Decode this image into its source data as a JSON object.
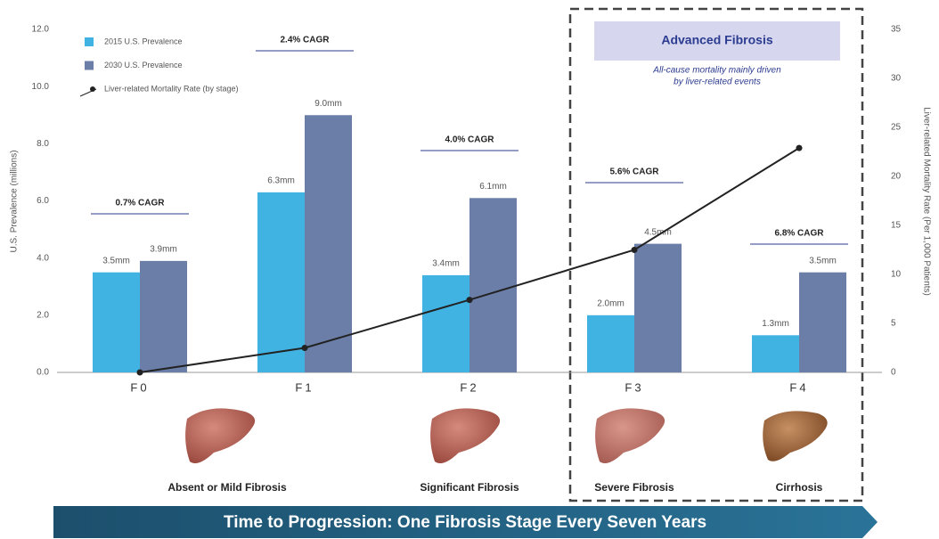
{
  "chart_data": {
    "type": "bar",
    "categories": [
      "F0",
      "F1",
      "F2",
      "F3",
      "F4"
    ],
    "ylabel": "U.S. Prevalence (millions)",
    "y2label": "Liver-related Mortality Rate (Per 1,000 Patients)",
    "ylim": [
      0,
      12
    ],
    "yticks": [
      {
        "value": 0,
        "label": "0.0"
      },
      {
        "value": 2,
        "label": "2.0"
      },
      {
        "value": 4,
        "label": "4.0"
      },
      {
        "value": 6,
        "label": "6.0"
      },
      {
        "value": 8,
        "label": "8.0"
      },
      {
        "value": 10,
        "label": "10.0"
      },
      {
        "value": 12,
        "label": "12.0"
      }
    ],
    "y2lim": [
      0,
      35
    ],
    "y2ticks": [
      0,
      5,
      10,
      15,
      20,
      25,
      30,
      35
    ],
    "grid": false,
    "legend": "top-left",
    "series": [
      {
        "name": "2015 U.S. Prevalence",
        "color": "#41b3e3",
        "values": [
          3.5,
          6.3,
          3.4,
          2.0,
          1.3
        ],
        "value_labels": [
          "3.5mm",
          "6.3mm",
          "3.4mm",
          "2.0mm",
          "1.3mm"
        ]
      },
      {
        "name": "2030 U.S. Prevalence",
        "color": "#6a7ea8",
        "values": [
          3.9,
          9.0,
          6.1,
          4.5,
          3.5
        ],
        "value_labels": [
          "3.9mm",
          "9.0mm",
          "6.1mm",
          "4.5mm",
          "3.5mm"
        ]
      },
      {
        "name": "Liver-related Mortality Rate (by stage)",
        "type": "line",
        "axis": "y2",
        "color": "#222222",
        "values": [
          0,
          2.5,
          7.4,
          12.5,
          22.9
        ]
      }
    ],
    "cagr_labels": [
      "0.7% CAGR",
      "2.4% CAGR",
      "4.0% CAGR",
      "5.6% CAGR",
      "6.8% CAGR"
    ],
    "stage_labels": [
      "Absent or Mild Fibrosis",
      null,
      "Significant Fibrosis",
      "Severe Fibrosis",
      "Cirrhosis"
    ],
    "highlight": {
      "title": "Advanced Fibrosis",
      "lines": [
        "All-cause mortality mainly driven",
        "by liver-related events"
      ]
    },
    "banner": "Time to Progression: One Fibrosis Stage Every Seven Years"
  }
}
